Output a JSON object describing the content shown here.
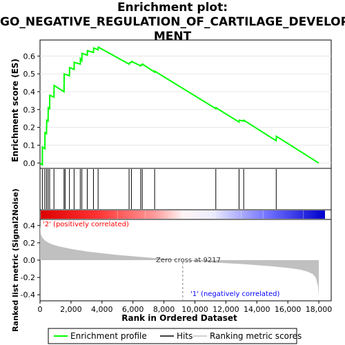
{
  "chart_data": {
    "type": "line",
    "title_lines": [
      "Enrichment plot:",
      "GO_NEGATIVE_REGULATION_OF_CARTILAGE_DEVELOP",
      "MENT"
    ],
    "top_panel": {
      "ylabel": "Enrichment score (ES)",
      "ylim": [
        -0.03,
        0.69
      ],
      "yticks": [
        0.0,
        0.1,
        0.2,
        0.3,
        0.4,
        0.5,
        0.6
      ],
      "ytick_labels": [
        "0.0",
        "0.1",
        "0.2",
        "0.3",
        "0.4",
        "0.5",
        "0.6"
      ],
      "series": {
        "name": "Enrichment profile",
        "color": "#00ff00",
        "x": [
          0,
          150,
          155,
          310,
          320,
          420,
          430,
          520,
          530,
          620,
          630,
          900,
          910,
          1550,
          1560,
          1900,
          1910,
          2200,
          2210,
          2600,
          2610,
          2700,
          2710,
          3050,
          3060,
          3450,
          3460,
          3750,
          3760,
          5750,
          5760,
          5900,
          5910,
          6500,
          6510,
          6600,
          6610,
          7400,
          7410,
          11350,
          11360,
          12850,
          12860,
          13150,
          13160,
          15250,
          15260,
          18000
        ],
        "y": [
          0.0,
          -0.01,
          0.09,
          0.08,
          0.17,
          0.165,
          0.24,
          0.235,
          0.31,
          0.305,
          0.38,
          0.37,
          0.435,
          0.4,
          0.5,
          0.49,
          0.535,
          0.525,
          0.565,
          0.555,
          0.585,
          0.575,
          0.615,
          0.605,
          0.63,
          0.62,
          0.645,
          0.635,
          0.65,
          0.555,
          0.56,
          0.565,
          0.57,
          0.545,
          0.55,
          0.55,
          0.555,
          0.51,
          0.515,
          0.305,
          0.31,
          0.23,
          0.24,
          0.235,
          0.24,
          0.125,
          0.15,
          0.0
        ]
      }
    },
    "hits": {
      "name": "Hits",
      "x": [
        150,
        310,
        420,
        520,
        620,
        900,
        1550,
        1620,
        1900,
        2200,
        2600,
        2700,
        3050,
        3450,
        3750,
        5750,
        5900,
        6500,
        6600,
        7400,
        11350,
        12850,
        13150,
        15250
      ]
    },
    "bottom_panel": {
      "ylabel": "Ranked list metric (Signal2Noise)",
      "xlabel": "Rank in Ordered Dataset",
      "xlim": [
        0,
        18800
      ],
      "xticks": [
        0,
        2000,
        4000,
        6000,
        8000,
        10000,
        12000,
        14000,
        16000,
        18000
      ],
      "xtick_labels": [
        "0",
        "2,000",
        "4,000",
        "6,000",
        "8,000",
        "10,000",
        "12,000",
        "14,000",
        "16,000",
        "18,000"
      ],
      "ylim": [
        -0.47,
        0.47
      ],
      "yticks": [
        0.4,
        0.2,
        0.0,
        -0.2,
        -0.4
      ],
      "ytick_labels": [
        "0.4",
        "0.2",
        "0.0",
        "-0.2",
        "-0.4"
      ],
      "series": {
        "name": "Ranking metric scores",
        "color": "#c0c0c0",
        "x": [
          0,
          50,
          150,
          300,
          500,
          800,
          1200,
          2000,
          3000,
          4000,
          5000,
          6000,
          7000,
          8000,
          9217,
          10000,
          11000,
          12000,
          13000,
          14000,
          15000,
          16000,
          16800,
          17300,
          17600,
          17800,
          17950,
          18000
        ],
        "y": [
          0.4,
          0.3,
          0.26,
          0.23,
          0.205,
          0.18,
          0.16,
          0.13,
          0.1,
          0.08,
          0.06,
          0.045,
          0.03,
          0.015,
          0.0,
          -0.012,
          -0.025,
          -0.035,
          -0.045,
          -0.058,
          -0.072,
          -0.09,
          -0.11,
          -0.135,
          -0.16,
          -0.2,
          -0.3,
          -0.42
        ]
      },
      "zero_cross_label": "Zero cross at 9217",
      "zero_cross_x": 9217,
      "pos_label": "'2' (positively correlated)",
      "neg_label": "'1' (negatively correlated)",
      "pos_color": "#ff0000",
      "neg_color": "#0000ff"
    },
    "legend": {
      "entries": [
        "Enrichment profile",
        "Hits",
        "Ranking metric scores"
      ],
      "placement": "bottom"
    }
  }
}
